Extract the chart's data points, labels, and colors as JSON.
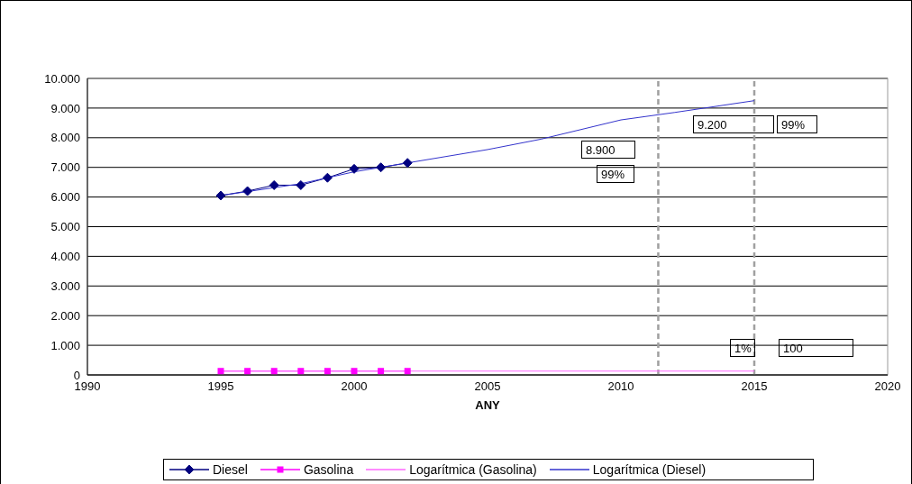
{
  "chart_data": {
    "type": "line",
    "xlabel": "ANY",
    "xlim": [
      1990,
      2020
    ],
    "xticks": [
      1990,
      1995,
      2000,
      2005,
      2010,
      2015,
      2020
    ],
    "ylim": [
      0,
      10000
    ],
    "yticks": [
      {
        "value": 0,
        "label": "0"
      },
      {
        "value": 1000,
        "label": "1.000"
      },
      {
        "value": 2000,
        "label": "2.000"
      },
      {
        "value": 3000,
        "label": "3.000"
      },
      {
        "value": 4000,
        "label": "4.000"
      },
      {
        "value": 5000,
        "label": "5.000"
      },
      {
        "value": 6000,
        "label": "6.000"
      },
      {
        "value": 7000,
        "label": "7.000"
      },
      {
        "value": 8000,
        "label": "8.000"
      },
      {
        "value": 9000,
        "label": "9.000"
      },
      {
        "value": 10000,
        "label": "10.000"
      }
    ],
    "grid": "y",
    "legend": "bottom",
    "series": [
      {
        "name": "Diesel",
        "color": "#000080",
        "marker": "diamond",
        "x": [
          1995,
          1996,
          1997,
          1998,
          1999,
          2000,
          2001,
          2002
        ],
        "values": [
          6050,
          6200,
          6400,
          6400,
          6650,
          6950,
          7000,
          7150
        ]
      },
      {
        "name": "Gasolina",
        "color": "#ff00ff",
        "marker": "square",
        "x": [
          1995,
          1996,
          1997,
          1998,
          1999,
          2000,
          2001,
          2002
        ],
        "values": [
          130,
          130,
          130,
          130,
          130,
          130,
          130,
          130
        ]
      },
      {
        "name": "Logarítmica (Gasolina)",
        "color": "#ff66ff",
        "marker": "none",
        "x": [
          1995,
          2015
        ],
        "values": [
          130,
          130
        ]
      },
      {
        "name": "Logarítmica (Diesel)",
        "color": "#3333cc",
        "marker": "none",
        "x": [
          1995,
          1998,
          2000,
          2002,
          2005,
          2007,
          2010,
          2012,
          2015
        ],
        "values": [
          6050,
          6450,
          6850,
          7150,
          7600,
          7950,
          8600,
          8850,
          9250
        ]
      }
    ],
    "ref_lines": [
      {
        "axis": "x",
        "value": 2011.4,
        "color": "#a0a0a0",
        "line_style": "dashed"
      },
      {
        "axis": "x",
        "value": 2015,
        "color": "#a0a0a0",
        "line_style": "dashed"
      }
    ],
    "annotations": [
      "8.900",
      "99%",
      "9.200",
      "99%",
      "1%",
      "100"
    ]
  }
}
